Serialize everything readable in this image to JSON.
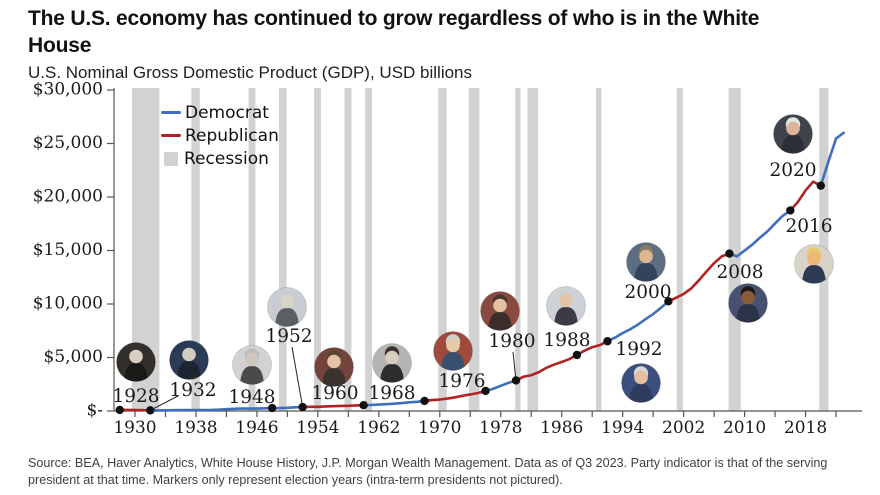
{
  "header": {
    "title": "The U.S. economy has continued to grow regardless of who is in the White House",
    "subtitle": "U.S. Nominal Gross Domestic Product (GDP), USD billions"
  },
  "footer": {
    "source": "Source: BEA, Haver Analytics, White House History, J.P. Morgan Wealth Management. Data as of Q3 2023. Party indicator is that of the serving president at that time. Markers only represent election years (intra-term presidents not pictured)."
  },
  "legend": [
    {
      "label": "Democrat",
      "swatch": "line",
      "color": "#3f6fba"
    },
    {
      "label": "Republican",
      "swatch": "line",
      "color": "#b22222"
    },
    {
      "label": "Recession",
      "swatch": "box",
      "color": "#d2d2d2"
    }
  ],
  "colors": {
    "democrat": "#3f6fba",
    "republican": "#b22222",
    "recession": "#d2d2d2",
    "marker": "#111111",
    "axis": "#555555",
    "text": "#1a1a1a"
  },
  "chart_data": {
    "type": "line",
    "title": "The U.S. economy has continued to grow regardless of who is in the White House",
    "subtitle": "U.S. Nominal Gross Domestic Product (GDP), USD billions",
    "unit": "USD billions",
    "grid": false,
    "legend_position": "top-left",
    "x_start_year": 1928,
    "x": "years 1928-2023, one point per year",
    "series": [
      {
        "name": "U.S. Nominal GDP",
        "values": [
          97,
          105,
          92,
          77,
          60,
          57,
          67,
          74,
          85,
          93,
          87,
          93,
          103,
          129,
          166,
          203,
          224,
          228,
          228,
          250,
          275,
          273,
          300,
          347,
          368,
          390,
          391,
          426,
          450,
          475,
          482,
          523,
          543,
          563,
          605,
          639,
          686,
          744,
          815,
          862,
          943,
          1020,
          1073,
          1165,
          1279,
          1425,
          1545,
          1685,
          1873,
          2082,
          2352,
          2627,
          2857,
          3207,
          3344,
          3634,
          4038,
          4339,
          4580,
          4855,
          5236,
          5642,
          5963,
          6158,
          6520,
          6859,
          7287,
          7640,
          8073,
          8578,
          9063,
          9631,
          10251,
          10582,
          10936,
          11458,
          12214,
          13037,
          13815,
          14452,
          14713,
          14449,
          14992,
          15543,
          16197,
          16785,
          17527,
          18238,
          18745,
          19543,
          20612,
          21433,
          21060,
          23315,
          25463,
          26000
        ]
      }
    ],
    "ylim": [
      0,
      30000
    ],
    "y_ticks": [
      {
        "value": 0,
        "label": "$-"
      },
      {
        "value": 5000,
        "label": "$5,000"
      },
      {
        "value": 10000,
        "label": "$10,000"
      },
      {
        "value": 15000,
        "label": "$15,000"
      },
      {
        "value": 20000,
        "label": "$20,000"
      },
      {
        "value": 25000,
        "label": "$25,000"
      },
      {
        "value": 30000,
        "label": "$30,000"
      }
    ],
    "x_tick_labels": [
      "1930",
      "1938",
      "1946",
      "1954",
      "1962",
      "1970",
      "1978",
      "1986",
      "1994",
      "2002",
      "2010",
      "2018"
    ],
    "x_minor_tick_step_years": 4,
    "party_segments": [
      {
        "party": "Republican",
        "from": 1928,
        "to": 1932
      },
      {
        "party": "Democrat",
        "from": 1932,
        "to": 1952
      },
      {
        "party": "Republican",
        "from": 1952,
        "to": 1960
      },
      {
        "party": "Democrat",
        "from": 1960,
        "to": 1968
      },
      {
        "party": "Republican",
        "from": 1968,
        "to": 1976
      },
      {
        "party": "Democrat",
        "from": 1976,
        "to": 1980
      },
      {
        "party": "Republican",
        "from": 1980,
        "to": 1992
      },
      {
        "party": "Democrat",
        "from": 1992,
        "to": 2000
      },
      {
        "party": "Republican",
        "from": 2000,
        "to": 2008
      },
      {
        "party": "Democrat",
        "from": 2008,
        "to": 2016
      },
      {
        "party": "Republican",
        "from": 2016,
        "to": 2020
      },
      {
        "party": "Democrat",
        "from": 2020,
        "to": 2023
      }
    ],
    "elections": [
      {
        "year": "1928",
        "president": "Herbert Hoover",
        "party": "Republican"
      },
      {
        "year": "1932",
        "president": "Franklin D. Roosevelt",
        "party": "Democrat"
      },
      {
        "year": "1948",
        "president": "Harry S. Truman",
        "party": "Democrat"
      },
      {
        "year": "1952",
        "president": "Dwight D. Eisenhower",
        "party": "Republican"
      },
      {
        "year": "1960",
        "president": "John F. Kennedy",
        "party": "Democrat"
      },
      {
        "year": "1968",
        "president": "Richard Nixon",
        "party": "Republican"
      },
      {
        "year": "1976",
        "president": "Jimmy Carter",
        "party": "Democrat"
      },
      {
        "year": "1980",
        "president": "Ronald Reagan",
        "party": "Republican"
      },
      {
        "year": "1988",
        "president": "George H. W. Bush",
        "party": "Republican"
      },
      {
        "year": "1992",
        "president": "Bill Clinton",
        "party": "Democrat"
      },
      {
        "year": "2000",
        "president": "George W. Bush",
        "party": "Republican"
      },
      {
        "year": "2008",
        "president": "Barack Obama",
        "party": "Democrat"
      },
      {
        "year": "2016",
        "president": "Donald Trump",
        "party": "Republican"
      },
      {
        "year": "2020",
        "president": "Joe Biden",
        "party": "Democrat"
      }
    ],
    "recessions": [
      [
        1929.6,
        1933.2
      ],
      [
        1937.4,
        1938.5
      ],
      [
        1944.9,
        1945.8
      ],
      [
        1948.9,
        1949.9
      ],
      [
        1953.5,
        1954.4
      ],
      [
        1957.5,
        1958.4
      ],
      [
        1960.2,
        1961.1
      ],
      [
        1969.8,
        1970.9
      ],
      [
        1973.8,
        1975.2
      ],
      [
        1979.9,
        1980.6
      ],
      [
        1981.5,
        1982.9
      ],
      [
        1990.5,
        1991.2
      ],
      [
        2001.1,
        2001.9
      ],
      [
        2007.9,
        2009.5
      ],
      [
        2019.8,
        2021.0
      ]
    ]
  }
}
